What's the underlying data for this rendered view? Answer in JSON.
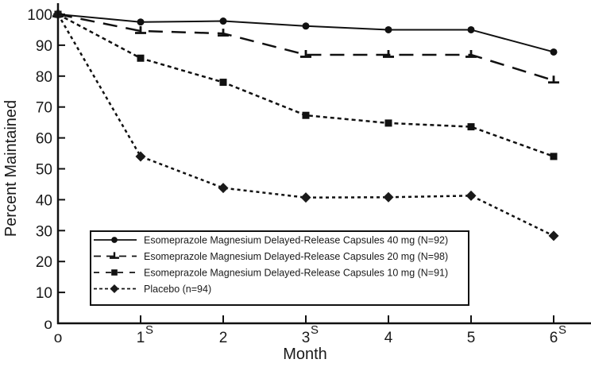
{
  "chart_data": {
    "type": "line",
    "title": "",
    "xlabel": "Month",
    "ylabel": "Percent Maintained",
    "xlim": [
      0,
      6
    ],
    "ylim": [
      0,
      100
    ],
    "grid": false,
    "x": [
      0,
      1,
      2,
      3,
      4,
      5,
      6
    ],
    "x_tick_labels": [
      {
        "value": 0,
        "label": "o",
        "sup": ""
      },
      {
        "value": 1,
        "label": "1",
        "sup": "S"
      },
      {
        "value": 2,
        "label": "2",
        "sup": ""
      },
      {
        "value": 3,
        "label": "3",
        "sup": "S"
      },
      {
        "value": 4,
        "label": "4",
        "sup": ""
      },
      {
        "value": 5,
        "label": "5",
        "sup": ""
      },
      {
        "value": 6,
        "label": "6",
        "sup": "S"
      }
    ],
    "y_tick_labels": [
      {
        "value": 0,
        "label": "o"
      },
      {
        "value": 10,
        "label": "10"
      },
      {
        "value": 20,
        "label": "20"
      },
      {
        "value": 30,
        "label": "30"
      },
      {
        "value": 40,
        "label": "40"
      },
      {
        "value": 50,
        "label": "50"
      },
      {
        "value": 60,
        "label": "60"
      },
      {
        "value": 70,
        "label": "70"
      },
      {
        "value": 80,
        "label": "80"
      },
      {
        "value": 90,
        "label": "90"
      },
      {
        "value": 100,
        "label": "100"
      }
    ],
    "legend_position": "bottom-left-inside",
    "series": [
      {
        "name": "Esomeprazole Magnesium Delayed-Release Capsules 40 mg (N=92)",
        "line_style": "solid",
        "marker": "circle",
        "color": "#111111",
        "values": [
          100,
          97.5,
          97.8,
          96.2,
          95.0,
          95.0,
          87.8
        ]
      },
      {
        "name": "Esomeprazole Magnesium Delayed-Release Capsules 20 mg (N=98)",
        "line_style": "long-dash",
        "marker": "inverted-t",
        "color": "#111111",
        "values": [
          100,
          94.6,
          93.8,
          86.9,
          86.9,
          86.9,
          78.6
        ]
      },
      {
        "name": "Esomeprazole Magnesium Delayed-Release Capsules 10 mg (N=91)",
        "line_style": "short-dash",
        "marker": "square",
        "color": "#111111",
        "values": [
          100,
          85.8,
          78.0,
          67.3,
          64.8,
          63.6,
          54.0
        ]
      },
      {
        "name": "Placebo (n=94)",
        "line_style": "dotted",
        "marker": "diamond",
        "color": "#111111",
        "values": [
          100,
          54.0,
          43.8,
          40.7,
          40.8,
          41.3,
          28.3
        ]
      }
    ]
  }
}
